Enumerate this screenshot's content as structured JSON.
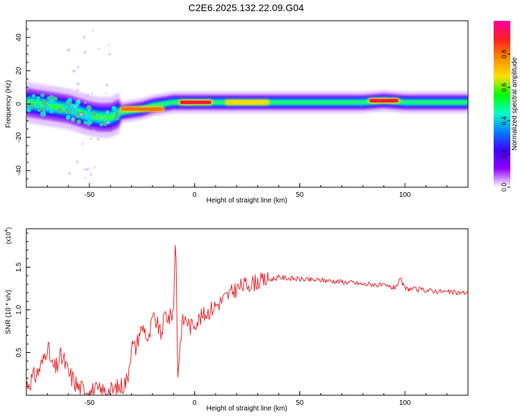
{
  "page": {
    "title": "C2E6.2025.132.22.09.G04"
  },
  "chart_data": [
    {
      "type": "heatmap",
      "xlabel": "Height of straight line (km)",
      "ylabel": "Frequency (Hz)",
      "xlim": [
        -80,
        130
      ],
      "ylim": [
        -50,
        50
      ],
      "xticks": [
        -50,
        0,
        50,
        100
      ],
      "yticks": [
        -40,
        -20,
        0,
        20,
        40
      ],
      "grid": false,
      "colorbar": {
        "label": "Normalized spectral amplitude",
        "range": [
          0,
          1
        ],
        "ticks": [
          "0.0",
          "0.2",
          "0.4",
          "0.6",
          "0.8"
        ],
        "colormap": [
          "#ff00a0",
          "#ff2020",
          "#ff8a00",
          "#ffe000",
          "#00ff00",
          "#00ffc8",
          "#0080ff",
          "#4000ff",
          "#9000ff",
          "#ffffff"
        ]
      },
      "band_centerline": [
        [
          -80,
          1
        ],
        [
          -75,
          0
        ],
        [
          -70,
          -1
        ],
        [
          -65,
          -2
        ],
        [
          -60,
          -3
        ],
        [
          -55,
          -5
        ],
        [
          -50,
          -7
        ],
        [
          -45,
          -8
        ],
        [
          -40,
          -8
        ],
        [
          -35,
          -5
        ],
        [
          -30,
          -4
        ],
        [
          -25,
          -3
        ],
        [
          -20,
          -1
        ],
        [
          -15,
          0
        ],
        [
          -10,
          1
        ],
        [
          -5,
          1
        ],
        [
          0,
          1
        ],
        [
          10,
          1
        ],
        [
          20,
          1
        ],
        [
          40,
          1
        ],
        [
          60,
          1
        ],
        [
          80,
          1
        ],
        [
          90,
          2
        ],
        [
          100,
          1
        ],
        [
          130,
          1
        ]
      ],
      "peak_regions": [
        {
          "x": [
            -7,
            8
          ],
          "y": 1,
          "amplitude": 1.0
        },
        {
          "x": [
            83,
            97
          ],
          "y": 2,
          "amplitude": 1.0
        },
        {
          "x": [
            -35,
            -15
          ],
          "y": -3,
          "amplitude": 0.9
        },
        {
          "x": [
            15,
            35
          ],
          "y": 1,
          "amplitude": 0.75
        }
      ]
    },
    {
      "type": "line",
      "xlabel": "Height of straight line (km)",
      "ylabel": "SNR (10 * v/v)",
      "y_multiplier": "(x10",
      "y_multiplier_exp": "4",
      "y_multiplier_close": ")",
      "xlim": [
        -80,
        130
      ],
      "ylim": [
        0,
        1.95
      ],
      "xticks": [
        -50,
        0,
        50,
        100
      ],
      "yticks": [
        "0.5",
        "1.0",
        "1.5"
      ],
      "grid": false,
      "color": "#e8242c",
      "series": [
        {
          "x": [
            -80,
            -75,
            -72,
            -70,
            -68,
            -66,
            -64,
            -62,
            -60,
            -58,
            -55,
            -50,
            -45,
            -40,
            -35,
            -32,
            -30,
            -28,
            -26,
            -24,
            -22,
            -20,
            -18,
            -16,
            -14,
            -12,
            -10,
            -9,
            -8,
            -6,
            -4,
            -2,
            0,
            5,
            10,
            15,
            20,
            25,
            30,
            35,
            40,
            45,
            50,
            55,
            60,
            65,
            70,
            75,
            80,
            85,
            90,
            95,
            98,
            100,
            105,
            110,
            115,
            120,
            125,
            130
          ],
          "y": [
            0.12,
            0.25,
            0.4,
            0.6,
            0.35,
            0.3,
            0.45,
            0.4,
            0.25,
            0.2,
            0.08,
            0.05,
            0.04,
            0.04,
            0.1,
            0.18,
            0.6,
            0.55,
            0.75,
            0.8,
            0.6,
            0.9,
            0.85,
            0.7,
            0.95,
            0.9,
            1.0,
            1.95,
            0.25,
            0.85,
            0.9,
            0.8,
            0.85,
            0.95,
            1.05,
            1.15,
            1.25,
            1.3,
            1.33,
            1.35,
            1.38,
            1.37,
            1.36,
            1.35,
            1.35,
            1.34,
            1.33,
            1.32,
            1.3,
            1.3,
            1.28,
            1.26,
            1.35,
            1.25,
            1.24,
            1.23,
            1.22,
            1.21,
            1.2,
            1.2
          ]
        }
      ]
    }
  ]
}
